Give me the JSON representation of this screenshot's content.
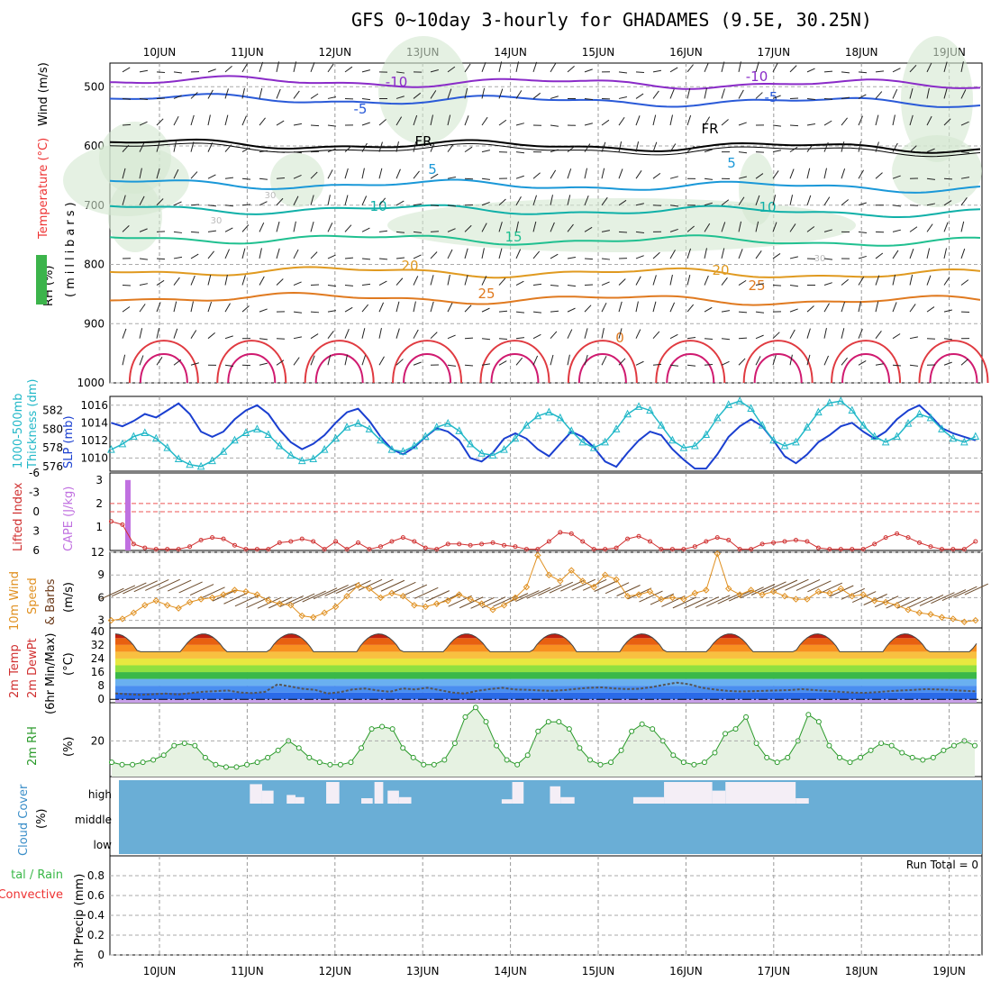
{
  "title": "GFS 0~10day 3-hourly for GHADAMES (9.5E, 30.25N)",
  "dates": [
    "10JUN",
    "11JUN",
    "12JUN",
    "13JUN",
    "14JUN",
    "15JUN",
    "16JUN",
    "17JUN",
    "18JUN",
    "19JUN"
  ],
  "colors": {
    "blue_slp": "#1a3fd0",
    "cyan_thk": "#22b8c8",
    "lifted": "#d03030",
    "cape": "#c070e0",
    "wind_speed": "#e09020",
    "barb": "#6b4a2a",
    "rh_fill": "#d8e8d0",
    "rh_line": "#2a9a2a",
    "cloud_bg": "#6aaed6",
    "cloud_bar": "#f4eef6"
  },
  "chart_data": [
    {
      "type": "line",
      "panel": "upper-air",
      "ylabel_parts": [
        "Wind (m/s)",
        "Temperature (°C)",
        "(millibars)",
        "RH (%)"
      ],
      "yticks": [
        "500",
        "600",
        "700",
        "800",
        "900",
        "1000"
      ],
      "ylim": [
        460,
        1000
      ],
      "contours": [
        {
          "label": "-10",
          "pressure": 490
        },
        {
          "label": "-5",
          "pressure": 520
        },
        {
          "label": "FR",
          "pressure": 596
        },
        {
          "label": "5",
          "pressure": 663
        },
        {
          "label": "10",
          "pressure": 705
        },
        {
          "label": "15",
          "pressure": 755
        },
        {
          "label": "20",
          "pressure": 810
        },
        {
          "label": "25",
          "pressure": 855
        },
        {
          "label": "30",
          "pressure": 740
        }
      ],
      "contour_labels": [
        "-10",
        "-10",
        "-5",
        "-5",
        "FR",
        "FR",
        "5",
        "5",
        "10",
        "10",
        "15",
        "20",
        "20",
        "25",
        "25",
        "30",
        "30",
        "30",
        "0"
      ]
    },
    {
      "type": "line",
      "panel": "slp-thickness",
      "ylabel_left": "1000-500mb Thickness (dm)",
      "ylabel_right": "SLP (mb)",
      "yticks_left": [
        "576",
        "578",
        "580",
        "582"
      ],
      "yticks_right": [
        "1010",
        "1012",
        "1014",
        "1016"
      ],
      "ylim_slp": [
        1008.5,
        1017
      ],
      "ylim_thk": [
        575.5,
        583.5
      ],
      "series": [
        {
          "values": [
            1014,
            1013.6,
            1014.2,
            1015.0,
            1014.6,
            1015.4,
            1016.2,
            1015.0,
            1013.0,
            1012.4,
            1013.0,
            1014.4,
            1015.4,
            1016.0,
            1015.0,
            1013.2,
            1011.8,
            1011.0,
            1011.6,
            1012.6,
            1014.0,
            1015.2,
            1015.6,
            1014.2,
            1012.4,
            1011.0,
            1010.4,
            1011.2,
            1012.4,
            1013.4,
            1013.0,
            1012.0,
            1010.0,
            1009.6,
            1010.6,
            1012.2,
            1012.8,
            1012.2,
            1011.0,
            1010.2,
            1011.6,
            1013.0,
            1012.4,
            1011.2,
            1009.6,
            1009.0,
            1010.6,
            1012.0,
            1013.0,
            1012.6,
            1011.0,
            1009.8,
            1008.8,
            1008.8,
            1010.4,
            1012.4,
            1013.6,
            1014.4,
            1013.6,
            1012.0,
            1010.2,
            1009.4,
            1010.4,
            1011.8,
            1012.6,
            1013.6,
            1014.0,
            1013.0,
            1012.2,
            1013.0,
            1014.4,
            1015.4,
            1016.0,
            1014.8,
            1013.4,
            1012.8,
            1012.4,
            1012.0
          ]
        },
        {
          "values": [
            577.8,
            578.4,
            579.2,
            579.6,
            579.0,
            578.0,
            576.8,
            576.2,
            576.0,
            576.6,
            577.6,
            578.8,
            579.6,
            580.0,
            579.4,
            578.2,
            577.2,
            576.6,
            576.8,
            577.8,
            579.0,
            580.2,
            580.6,
            580.0,
            578.8,
            577.8,
            577.6,
            578.2,
            579.2,
            580.2,
            580.6,
            579.8,
            578.4,
            577.4,
            577.2,
            577.8,
            579.0,
            580.4,
            581.4,
            581.8,
            581.2,
            579.8,
            578.6,
            578.0,
            578.6,
            580.0,
            581.6,
            582.4,
            582.0,
            580.4,
            578.8,
            578.0,
            578.2,
            579.4,
            581.2,
            582.6,
            583.0,
            582.2,
            580.4,
            578.8,
            578.2,
            578.6,
            580.2,
            581.8,
            582.8,
            583.0,
            582.0,
            580.4,
            579.2,
            578.6,
            579.2,
            580.6,
            581.6,
            581.2,
            580.0,
            579.0,
            578.6,
            579.2
          ]
        }
      ]
    },
    {
      "type": "line",
      "panel": "lifted-cape",
      "ylabel_left": "Lifted Index",
      "ylabel_right": "CAPE (J/kg)",
      "yticks_left": [
        "-6",
        "-3",
        "0",
        "3",
        "6"
      ],
      "yticks_right": [
        "1",
        "2",
        "3"
      ],
      "cape_bar": {
        "x_day": 0.08,
        "value": 3.0
      },
      "lifted_values": [
        1.5,
        2.0,
        5.0,
        5.6,
        5.8,
        5.8,
        5.8,
        5.4,
        4.4,
        4.0,
        4.2,
        5.2,
        5.8,
        5.8,
        5.8,
        4.8,
        4.6,
        4.2,
        4.6,
        5.8,
        4.6,
        5.8,
        4.8,
        5.8,
        5.4,
        4.6,
        4.0,
        4.6,
        5.6,
        5.8,
        5.0,
        5.0,
        5.2,
        5.0,
        4.8,
        5.2,
        5.4,
        5.8,
        5.8,
        4.6,
        3.2,
        3.4,
        4.6,
        5.8,
        5.8,
        5.6,
        4.2,
        3.8,
        4.6,
        5.8,
        5.8,
        5.8,
        5.4,
        4.6,
        4.0,
        4.4,
        5.8,
        5.8,
        5.0,
        4.8,
        4.6,
        4.4,
        4.6,
        5.6,
        5.8,
        5.8,
        5.8,
        5.8,
        5.0,
        4.0,
        3.4,
        4.0,
        4.8,
        5.4,
        5.8,
        5.8,
        5.8,
        4.6
      ]
    },
    {
      "type": "line",
      "panel": "10m-wind",
      "ylabel": "10m Wind Speed & Barbs (m/s)",
      "yticks": [
        "3",
        "6",
        "9",
        "12"
      ],
      "ylim": [
        2,
        12
      ],
      "values": [
        3.0,
        3.2,
        4.0,
        5.0,
        5.6,
        5.0,
        4.6,
        5.4,
        5.8,
        6.0,
        6.4,
        7.0,
        6.8,
        6.4,
        5.6,
        5.2,
        5.0,
        3.6,
        3.4,
        4.0,
        4.8,
        6.2,
        7.6,
        7.2,
        6.0,
        6.6,
        6.2,
        5.0,
        4.8,
        5.2,
        5.6,
        6.4,
        5.8,
        5.2,
        4.4,
        5.0,
        6.0,
        7.4,
        11.6,
        9.0,
        8.2,
        9.6,
        8.2,
        7.4,
        9.0,
        8.4,
        6.2,
        6.4,
        6.8,
        5.8,
        6.0,
        5.8,
        6.6,
        7.0,
        11.8,
        7.2,
        6.4,
        7.0,
        6.4,
        6.8,
        6.2,
        5.8,
        5.8,
        6.8,
        6.6,
        7.2,
        6.2,
        6.4,
        5.6,
        5.4,
        5.0,
        4.4,
        4.0,
        3.8,
        3.4,
        3.2,
        2.8,
        3.0
      ]
    },
    {
      "type": "area",
      "panel": "2m-temp",
      "ylabel": "2m Temp 2m DewPt (6hr Min/Max) (°C)",
      "yticks": [
        "0",
        "8",
        "16",
        "24",
        "32",
        "40"
      ],
      "ylim": [
        -2,
        42
      ],
      "temp_min": 28,
      "temp_max": 38.5,
      "dewpt_values": [
        3.5,
        3.0,
        2.6,
        3.0,
        3.4,
        2.8,
        3.6,
        4.4,
        4.8,
        5.2,
        4.0,
        3.6,
        4.4,
        8.8,
        7.6,
        6.2,
        5.6,
        3.4,
        4.2,
        5.8,
        6.4,
        5.2,
        4.4,
        6.4,
        5.8,
        6.8,
        5.4,
        4.0,
        3.4,
        5.0,
        6.0,
        6.8,
        5.8,
        5.6,
        5.2,
        5.0,
        5.4,
        6.2,
        6.8,
        7.0,
        6.4,
        6.0,
        6.2,
        7.2,
        8.6,
        9.8,
        8.8,
        6.8,
        5.8,
        5.0,
        4.6,
        4.8,
        5.0,
        5.2,
        5.4,
        6.0,
        5.4,
        5.0,
        4.4,
        4.0,
        3.8,
        4.2,
        4.8,
        5.2,
        5.6,
        6.0,
        5.8,
        5.4,
        5.0,
        4.6
      ]
    },
    {
      "type": "area",
      "panel": "2m-rh",
      "ylabel": "2m RH (%)",
      "yticks": [
        "20"
      ],
      "ylim": [
        5,
        36
      ],
      "values": [
        11,
        10,
        10,
        11,
        12,
        14,
        18,
        19,
        18,
        13,
        10,
        9,
        9,
        10,
        11,
        13,
        16,
        20,
        17,
        13,
        11,
        10,
        10,
        11,
        17,
        25,
        26,
        25,
        17,
        13,
        10,
        10,
        12,
        19,
        30,
        34,
        28,
        18,
        12,
        10,
        14,
        24,
        28,
        28,
        25,
        17,
        12,
        10,
        11,
        16,
        24,
        27,
        25,
        20,
        14,
        11,
        10,
        11,
        15,
        23,
        25,
        30,
        19,
        13,
        11,
        13,
        20,
        31,
        28,
        18,
        13,
        11,
        13,
        16,
        19,
        18,
        15,
        13,
        12,
        13,
        16,
        18,
        20,
        18
      ]
    },
    {
      "type": "bar",
      "panel": "cloud-cover",
      "ylabel": "Cloud Cover (%)",
      "levels": [
        "high",
        "middle",
        "low"
      ],
      "bars": [
        {
          "start_day": 1.58,
          "end_day": 1.72,
          "coverage": 0.9
        },
        {
          "start_day": 1.72,
          "end_day": 1.85,
          "coverage": 0.6
        },
        {
          "start_day": 2.0,
          "end_day": 2.1,
          "coverage": 0.4
        },
        {
          "start_day": 2.1,
          "end_day": 2.2,
          "coverage": 0.3
        },
        {
          "start_day": 2.45,
          "end_day": 2.6,
          "coverage": 1.0
        },
        {
          "start_day": 2.85,
          "end_day": 2.98,
          "coverage": 0.25
        },
        {
          "start_day": 3.0,
          "end_day": 3.1,
          "coverage": 1.0
        },
        {
          "start_day": 3.15,
          "end_day": 3.28,
          "coverage": 0.6
        },
        {
          "start_day": 3.28,
          "end_day": 3.42,
          "coverage": 0.3
        },
        {
          "start_day": 4.45,
          "end_day": 4.57,
          "coverage": 0.2
        },
        {
          "start_day": 4.57,
          "end_day": 4.7,
          "coverage": 1.0
        },
        {
          "start_day": 5.0,
          "end_day": 5.12,
          "coverage": 0.8
        },
        {
          "start_day": 5.12,
          "end_day": 5.28,
          "coverage": 0.3
        },
        {
          "start_day": 5.95,
          "end_day": 6.3,
          "coverage": 0.3
        },
        {
          "start_day": 6.3,
          "end_day": 6.85,
          "coverage": 1.0
        },
        {
          "start_day": 6.85,
          "end_day": 7.0,
          "coverage": 0.6
        },
        {
          "start_day": 7.0,
          "end_day": 7.8,
          "coverage": 1.0
        },
        {
          "start_day": 7.8,
          "end_day": 7.95,
          "coverage": 0.25
        }
      ]
    },
    {
      "type": "bar",
      "panel": "precip",
      "ylabel_parts": [
        "3hr Precip (mm)",
        "Total / Rain",
        "Convective"
      ],
      "yticks": [
        "0",
        "0.2",
        "0.4",
        "0.6",
        "0.8"
      ],
      "ylim": [
        0,
        1
      ],
      "run_total": "Run Total = 0",
      "values": []
    }
  ]
}
